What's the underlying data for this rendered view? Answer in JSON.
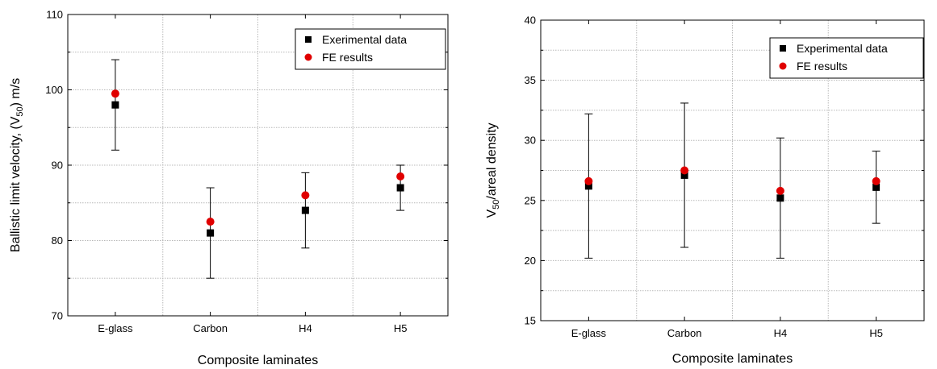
{
  "chart_data": [
    {
      "type": "scatter",
      "categories": [
        "E-glass",
        "Carbon",
        "H4",
        "H5"
      ],
      "xlabel": "Composite laminates",
      "ylabel": "Ballistic limit velocity, (V",
      "ylabel_sub": "50",
      "ylabel_tail": ") m/s",
      "ylim": [
        70,
        110
      ],
      "yticks": [
        70,
        80,
        90,
        100,
        110
      ],
      "grid": true,
      "legend_position": "top-right",
      "series": [
        {
          "name": "Exerimental data",
          "marker": "square",
          "color": "#000000",
          "values": [
            98,
            81,
            84,
            87
          ],
          "error_low": [
            92,
            75,
            79,
            84
          ],
          "error_high": [
            104,
            87,
            89,
            90
          ]
        },
        {
          "name": "FE results",
          "marker": "circle",
          "color": "#e00000",
          "values": [
            99.5,
            82.5,
            86,
            88.5
          ]
        }
      ]
    },
    {
      "type": "scatter",
      "categories": [
        "E-glass",
        "Carbon",
        "H4",
        "H5"
      ],
      "xlabel": "Composite laminates",
      "ylabel": "V",
      "ylabel_sub": "50",
      "ylabel_tail": "/areal density",
      "ylim": [
        15,
        40
      ],
      "yticks": [
        15,
        20,
        25,
        30,
        35,
        40
      ],
      "grid": true,
      "legend_position": "top-right",
      "series": [
        {
          "name": "Experimental data",
          "marker": "square",
          "color": "#000000",
          "values": [
            26.2,
            27.1,
            25.2,
            26.1
          ],
          "error_low": [
            20.2,
            21.1,
            20.2,
            23.1
          ],
          "error_high": [
            32.2,
            33.1,
            30.2,
            29.1
          ]
        },
        {
          "name": "FE results",
          "marker": "circle",
          "color": "#e00000",
          "values": [
            26.6,
            27.5,
            25.8,
            26.6
          ]
        }
      ]
    }
  ]
}
